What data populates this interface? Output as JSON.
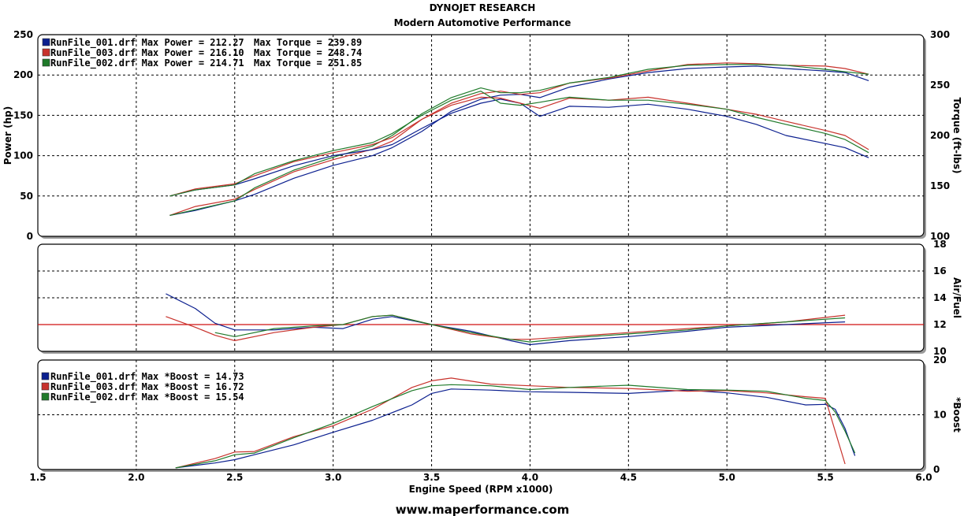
{
  "header": {
    "line1": "DYNOJET RESEARCH",
    "line2": "Modern Automotive Performance"
  },
  "footer": {
    "url": "www.maperformance.com"
  },
  "colors": {
    "run001": "#0b1f8f",
    "run003": "#c8322c",
    "run002": "#1f7a2a",
    "afr_ref": "#d01010",
    "grid": "#000000"
  },
  "chart_data": [
    {
      "type": "line",
      "panel": "power-torque",
      "xlabel": "Engine Speed (RPM x1000)",
      "xlim": [
        1.5,
        6.0
      ],
      "xticks": [
        "1.5",
        "2.0",
        "2.5",
        "3.0",
        "3.5",
        "4.0",
        "4.5",
        "5.0",
        "5.5",
        "6.0"
      ],
      "ylabel": "Power (hp)",
      "ylim": [
        0,
        250
      ],
      "yticks": [
        "0",
        "50",
        "100",
        "150",
        "200",
        "250"
      ],
      "y2label": "Torque (ft-lbs)",
      "y2lim": [
        100,
        300
      ],
      "y2ticks": [
        "100",
        "150",
        "200",
        "250",
        "300"
      ],
      "grid": true,
      "legend_position": "top-left",
      "legend": [
        {
          "file": "RunFile_001.drf",
          "power": "Max Power = 212.27",
          "torque": "Max Torque = 239.89"
        },
        {
          "file": "RunFile_003.drf",
          "power": "Max Power = 216.10",
          "torque": "Max Torque = 248.74"
        },
        {
          "file": "RunFile_002.drf",
          "power": "Max Power = 214.71",
          "torque": "Max Torque = 251.85"
        }
      ],
      "x": [
        2.17,
        2.3,
        2.5,
        2.6,
        2.8,
        3.0,
        3.2,
        3.3,
        3.45,
        3.6,
        3.75,
        3.85,
        3.95,
        4.05,
        4.2,
        4.4,
        4.6,
        4.8,
        5.0,
        5.15,
        5.3,
        5.5,
        5.6,
        5.72
      ],
      "series": [
        {
          "name": "RunFile_001.drf",
          "key": "run001",
          "axis": "power",
          "values": [
            26,
            32,
            44,
            52,
            72,
            88,
            100,
            110,
            130,
            155,
            170,
            175,
            176,
            172,
            185,
            195,
            203,
            208,
            210,
            211,
            208,
            205,
            203,
            193
          ]
        },
        {
          "name": "RunFile_003.drf",
          "key": "run003",
          "axis": "power",
          "values": [
            26,
            37,
            46,
            58,
            80,
            95,
            108,
            118,
            145,
            165,
            177,
            180,
            176,
            178,
            190,
            196,
            205,
            213,
            215,
            214,
            212,
            211,
            208,
            201
          ]
        },
        {
          "name": "RunFile_002.drf",
          "key": "run002",
          "axis": "power",
          "values": [
            26,
            33,
            44,
            60,
            82,
            98,
            112,
            125,
            152,
            172,
            184,
            178,
            178,
            181,
            190,
            197,
            207,
            212,
            213,
            213,
            212,
            207,
            204,
            201
          ]
        },
        {
          "name": "RunFile_001.drf",
          "key": "run001",
          "axis": "torque",
          "values": [
            140,
            146,
            151,
            157,
            170,
            180,
            186,
            191,
            207,
            222,
            232,
            236,
            232,
            219,
            229,
            228,
            231,
            226,
            219,
            211,
            200,
            192,
            188,
            178
          ]
        },
        {
          "name": "RunFile_003.drf",
          "key": "run003",
          "axis": "torque",
          "values": [
            140,
            147,
            152,
            160,
            174,
            183,
            191,
            198,
            216,
            230,
            238,
            237,
            232,
            227,
            237,
            235,
            238,
            232,
            226,
            221,
            214,
            205,
            200,
            186
          ]
        },
        {
          "name": "RunFile_002.drf",
          "key": "run002",
          "axis": "torque",
          "values": [
            140,
            146,
            151,
            162,
            175,
            185,
            193,
            202,
            220,
            235,
            244,
            232,
            230,
            233,
            238,
            235,
            235,
            231,
            226,
            218,
            211,
            202,
            196,
            183
          ]
        }
      ]
    },
    {
      "type": "line",
      "panel": "air-fuel",
      "xlim": [
        1.5,
        6.0
      ],
      "ylabel": "Air/Fuel",
      "ylim": [
        10,
        18
      ],
      "yticks": [
        "10",
        "12",
        "14",
        "16",
        "18"
      ],
      "reference_line": 12,
      "grid": true,
      "x": [
        2.15,
        2.3,
        2.4,
        2.5,
        2.7,
        2.9,
        3.05,
        3.2,
        3.3,
        3.5,
        3.7,
        3.9,
        4.0,
        4.2,
        4.5,
        4.8,
        5.0,
        5.3,
        5.6
      ],
      "series": [
        {
          "name": "RunFile_001.drf",
          "key": "run001",
          "values": [
            14.3,
            13.2,
            12.1,
            11.6,
            11.6,
            11.8,
            11.7,
            12.4,
            12.6,
            12.0,
            11.5,
            10.8,
            10.5,
            10.8,
            11.1,
            11.5,
            11.8,
            12.0,
            12.2
          ]
        },
        {
          "name": "RunFile_003.drf",
          "key": "run003",
          "values": [
            12.6,
            11.8,
            11.2,
            10.8,
            11.4,
            11.8,
            12.0,
            12.6,
            12.7,
            12.0,
            11.3,
            10.9,
            10.9,
            11.1,
            11.4,
            11.7,
            11.9,
            12.2,
            12.7
          ]
        },
        {
          "name": "RunFile_002.drf",
          "key": "run002",
          "values": [
            null,
            null,
            11.4,
            11.1,
            11.7,
            11.9,
            12.0,
            12.6,
            12.7,
            12.0,
            11.4,
            10.9,
            10.7,
            11.0,
            11.3,
            11.6,
            11.9,
            12.2,
            12.5
          ]
        }
      ]
    },
    {
      "type": "line",
      "panel": "boost",
      "xlim": [
        1.5,
        6.0
      ],
      "ylabel": "*Boost",
      "ylim": [
        0,
        20
      ],
      "yticks": [
        "0",
        "10",
        "20"
      ],
      "grid": true,
      "legend_position": "top-left",
      "legend": [
        {
          "file": "RunFile_001.drf",
          "boost": "Max *Boost = 14.73"
        },
        {
          "file": "RunFile_003.drf",
          "boost": "Max *Boost = 16.72"
        },
        {
          "file": "RunFile_002.drf",
          "boost": "Max *Boost = 15.54"
        }
      ],
      "x": [
        2.2,
        2.4,
        2.5,
        2.6,
        2.8,
        3.0,
        3.2,
        3.4,
        3.5,
        3.6,
        3.8,
        4.0,
        4.2,
        4.5,
        4.8,
        5.0,
        5.2,
        5.4,
        5.5,
        5.55,
        5.6,
        5.65
      ],
      "series": [
        {
          "name": "RunFile_001.drf",
          "key": "run001",
          "values": [
            0.3,
            1.2,
            1.8,
            2.7,
            4.5,
            6.8,
            9.0,
            11.8,
            13.9,
            14.7,
            14.5,
            14.2,
            14.1,
            13.9,
            14.5,
            14.0,
            13.2,
            11.8,
            11.9,
            11.0,
            7.5,
            2.5
          ]
        },
        {
          "name": "RunFile_003.drf",
          "key": "run003",
          "values": [
            0.3,
            2.0,
            3.2,
            3.3,
            6.0,
            8.0,
            11.0,
            15.0,
            16.2,
            16.7,
            15.6,
            15.3,
            15.0,
            14.8,
            14.3,
            14.4,
            14.0,
            13.3,
            13.0,
            7.0,
            1.0,
            null
          ]
        },
        {
          "name": "RunFile_002.drf",
          "key": "run002",
          "values": [
            0.3,
            1.6,
            2.7,
            3.0,
            5.8,
            8.4,
            11.5,
            14.4,
            15.3,
            15.5,
            15.3,
            14.6,
            15.0,
            15.4,
            14.6,
            14.5,
            14.3,
            13.0,
            12.6,
            10.5,
            7.0,
            3.0
          ]
        }
      ]
    }
  ]
}
